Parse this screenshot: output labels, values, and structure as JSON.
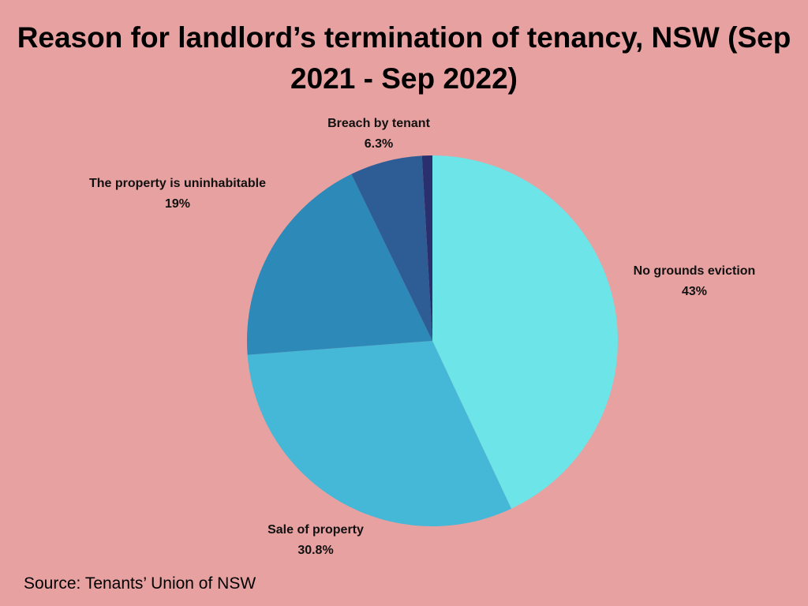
{
  "chart_data": {
    "type": "pie",
    "title": "Reason for landlord’s termination of tenancy, NSW (Sep 2021 - Sep 2022)",
    "categories": [
      "No grounds eviction",
      "Sale of property",
      "The property is uninhabitable",
      "Breach by tenant",
      null
    ],
    "values": [
      43,
      30.8,
      19,
      6.3,
      0.9
    ],
    "value_labels": [
      "43%",
      "30.8%",
      "19%",
      "6.3%",
      null
    ],
    "colors": [
      "#6ce4e8",
      "#44b8d6",
      "#2d8ab8",
      "#2e5d96",
      "#2a2f6e"
    ],
    "source": "Source: Tenants’ Union of NSW"
  }
}
